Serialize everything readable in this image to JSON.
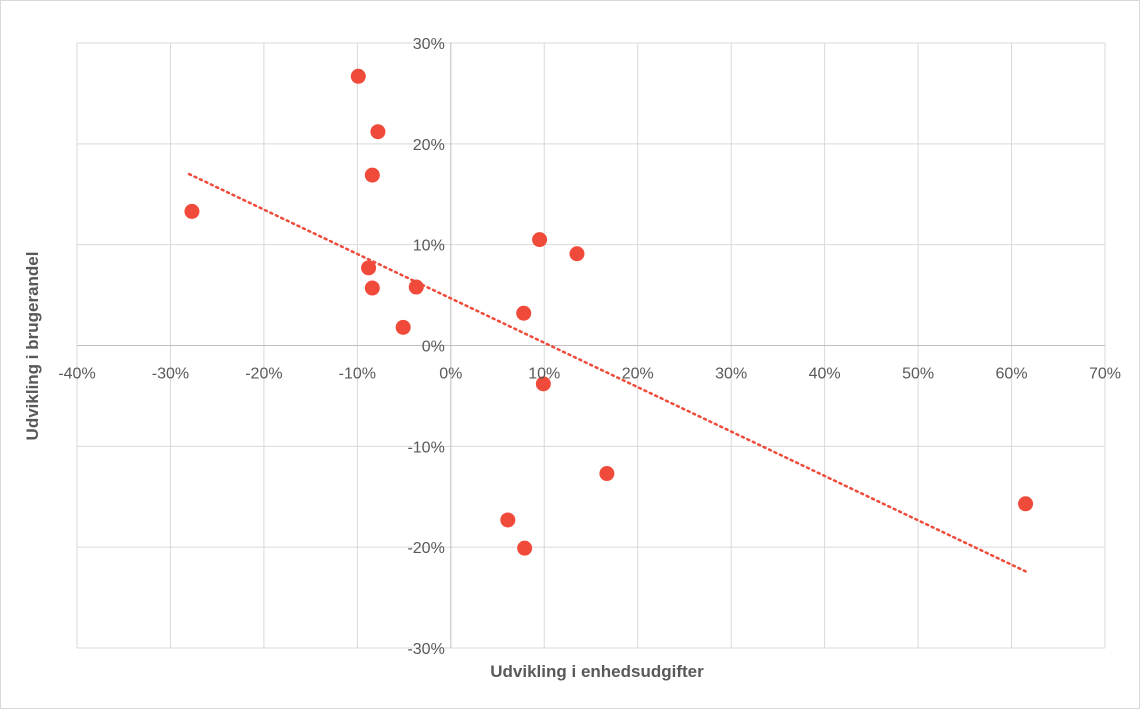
{
  "chart_data": {
    "type": "scatter",
    "xlabel": "Udvikling  i enhedsudgifter",
    "ylabel": "Udvikling i brugerandel",
    "xlim": [
      -40,
      70
    ],
    "ylim": [
      -30,
      30
    ],
    "x_ticks": [
      -40,
      -30,
      -20,
      -10,
      0,
      10,
      20,
      30,
      40,
      50,
      60,
      70
    ],
    "y_ticks": [
      -30,
      -20,
      -10,
      0,
      10,
      20,
      30
    ],
    "x_tick_labels": [
      "-40%",
      "-30%",
      "-20%",
      "-10%",
      "0%",
      "10%",
      "20%",
      "30%",
      "40%",
      "50%",
      "60%",
      "70%"
    ],
    "y_tick_labels": [
      "-30%",
      "-20%",
      "-10%",
      "0%",
      "10%",
      "20%",
      "30%"
    ],
    "grid": true,
    "legend": false,
    "points": [
      {
        "x": -27.7,
        "y": 13.3
      },
      {
        "x": -9.9,
        "y": 26.7
      },
      {
        "x": -7.8,
        "y": 21.2
      },
      {
        "x": -8.4,
        "y": 16.9
      },
      {
        "x": -8.8,
        "y": 7.7
      },
      {
        "x": -8.4,
        "y": 5.7
      },
      {
        "x": -3.7,
        "y": 5.8
      },
      {
        "x": -5.1,
        "y": 1.8
      },
      {
        "x": 9.5,
        "y": 10.5
      },
      {
        "x": 13.5,
        "y": 9.1
      },
      {
        "x": 7.8,
        "y": 3.2
      },
      {
        "x": 9.9,
        "y": -3.8
      },
      {
        "x": 16.7,
        "y": -12.7
      },
      {
        "x": 6.1,
        "y": -17.3
      },
      {
        "x": 7.9,
        "y": -20.1
      },
      {
        "x": 61.5,
        "y": -15.7
      }
    ],
    "trendline": {
      "x": [
        -28,
        61.5
      ],
      "y": [
        17.0,
        -22.4
      ]
    },
    "colors": {
      "point": "#f04a3a",
      "trendline": "#f04a3a",
      "grid": "#d9d9d9",
      "axis": "#bfbfbf",
      "text": "#595959",
      "border": "#d9d9d9"
    }
  }
}
